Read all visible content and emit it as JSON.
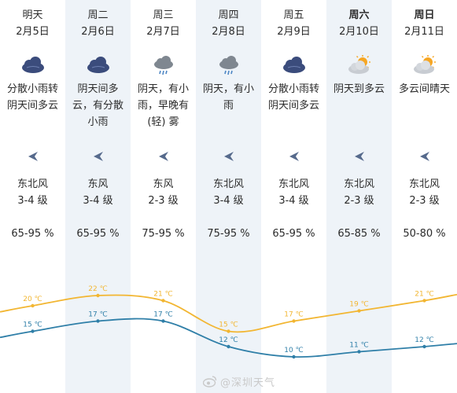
{
  "days": [
    {
      "day": "明天",
      "date": "2月5日",
      "icon": "overcast-rain-icon",
      "desc": "分散小雨转\n阴天间多云",
      "wind_dir": "东北风",
      "wind_level": "3-4 级",
      "humidity": "65-95 %",
      "high": "20 ℃",
      "low": "15 ℃",
      "bold": false
    },
    {
      "day": "周二",
      "date": "2月6日",
      "icon": "overcast-rain-icon",
      "desc": "阴天间多\n云，有分散\n小雨",
      "wind_dir": "东风",
      "wind_level": "3-4 级",
      "humidity": "65-95 %",
      "high": "22 ℃",
      "low": "17 ℃",
      "bold": false
    },
    {
      "day": "周三",
      "date": "2月7日",
      "icon": "cloud-rain-icon",
      "desc": "阴天，有小\n雨，早晚有\n(轻) 雾",
      "wind_dir": "东风",
      "wind_level": "2-3 级",
      "humidity": "75-95 %",
      "high": "21 ℃",
      "low": "17 ℃",
      "bold": false
    },
    {
      "day": "周四",
      "date": "2月8日",
      "icon": "cloud-rain-icon",
      "desc": "阴天，有小\n雨",
      "wind_dir": "东北风",
      "wind_level": "3-4 级",
      "humidity": "75-95 %",
      "high": "15 ℃",
      "low": "12 ℃",
      "bold": false
    },
    {
      "day": "周五",
      "date": "2月9日",
      "icon": "overcast-rain-icon",
      "desc": "分散小雨转\n阴天间多云",
      "wind_dir": "东北风",
      "wind_level": "3-4 级",
      "humidity": "65-95 %",
      "high": "17 ℃",
      "low": "10 ℃",
      "bold": false
    },
    {
      "day": "周六",
      "date": "2月10日",
      "icon": "sun-cloud-icon",
      "desc": "阴天到多云",
      "wind_dir": "东北风",
      "wind_level": "2-3 级",
      "humidity": "65-85 %",
      "high": "19 ℃",
      "low": "11 ℃",
      "bold": true
    },
    {
      "day": "周日",
      "date": "2月11日",
      "icon": "sun-cloud-icon",
      "desc": "多云间晴天",
      "wind_dir": "东北风",
      "wind_level": "2-3 级",
      "humidity": "50-80 %",
      "high": "21 ℃",
      "low": "12 ℃",
      "bold": true
    }
  ],
  "temperature": {
    "high_values": [
      20,
      22,
      21,
      15,
      17,
      19,
      21
    ],
    "low_values": [
      15,
      17,
      17,
      12,
      10,
      11,
      12
    ],
    "high_color": "#f2b632",
    "low_color": "#2f7fa8"
  },
  "watermark": "@深圳天气",
  "colors": {
    "icon_dark": "#3b4c7c",
    "icon_grey": "#7f8790",
    "sun": "#f6a623",
    "arrow": "#566a8c",
    "shade": "#eef3f8"
  }
}
